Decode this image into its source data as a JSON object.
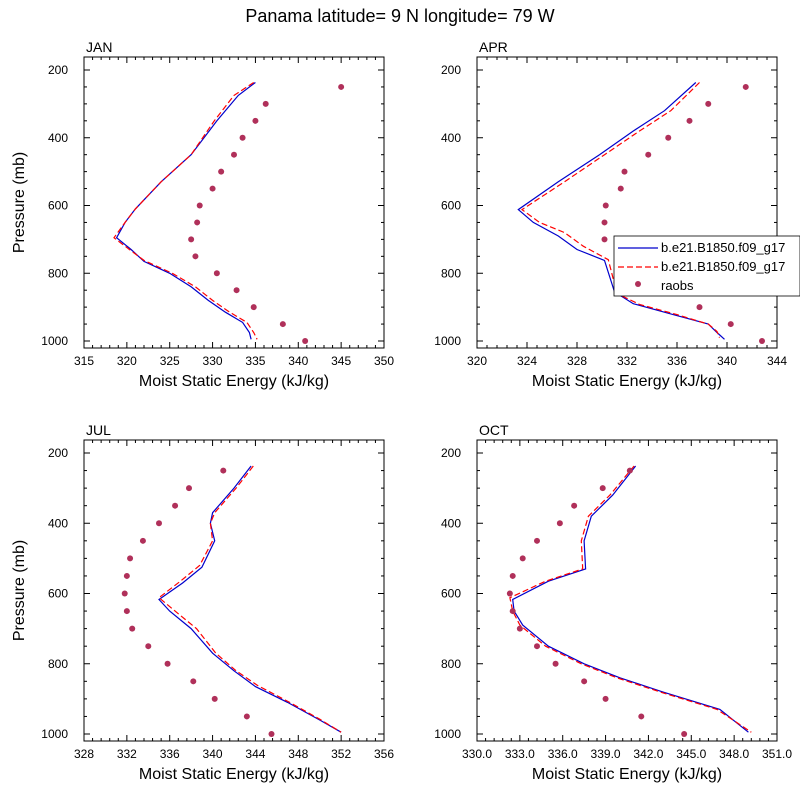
{
  "title": "Panama  latitude= 9 N longitude= 79 W",
  "colors": {
    "model1": "#0000cc",
    "model2": "#ff0000",
    "obs": "#b0305a"
  },
  "legend": {
    "entries": [
      "b.e21.B1850.f09_g17",
      "b.e21.B1850.f09_g17",
      "raobs"
    ]
  },
  "chart_data": [
    {
      "type": "line",
      "panel": "JAN",
      "xlabel": "Moist Static Energy (kJ/kg)",
      "ylabel": "Pressure (mb)",
      "xlim": [
        315,
        350
      ],
      "ylim": [
        200,
        1025
      ],
      "x_ticks": [
        315,
        320,
        325,
        330,
        335,
        340,
        345,
        350
      ],
      "x_tick_labels": [
        "315",
        "320",
        "325",
        "330",
        "335",
        "340",
        "345",
        "350"
      ],
      "y_ticks": [
        200,
        400,
        600,
        800,
        1000
      ],
      "series": [
        {
          "style": "solid",
          "color": "#0000cc",
          "points": [
            [
              335.0,
              237
            ],
            [
              333,
              275
            ],
            [
              330.5,
              350
            ],
            [
              327.5,
              450
            ],
            [
              324,
              530
            ],
            [
              321,
              610
            ],
            [
              319.8,
              650
            ],
            [
              318.8,
              695
            ],
            [
              320.5,
              730
            ],
            [
              322,
              765
            ],
            [
              325,
              800
            ],
            [
              327.5,
              840
            ],
            [
              329.5,
              880
            ],
            [
              331.5,
              915
            ],
            [
              333.5,
              945
            ],
            [
              334.3,
              975
            ],
            [
              334.5,
              995
            ]
          ]
        },
        {
          "style": "dashed",
          "color": "#ff0000",
          "points": [
            [
              334.8,
              237
            ],
            [
              332.5,
              275
            ],
            [
              330.2,
              350
            ],
            [
              327.5,
              450
            ],
            [
              324,
              530
            ],
            [
              321,
              610
            ],
            [
              319.8,
              650
            ],
            [
              318.5,
              695
            ],
            [
              320.3,
              730
            ],
            [
              322,
              762
            ],
            [
              325.3,
              800
            ],
            [
              328,
              840
            ],
            [
              330,
              880
            ],
            [
              332,
              915
            ],
            [
              334,
              945
            ],
            [
              334.8,
              975
            ],
            [
              335.2,
              995
            ]
          ]
        },
        {
          "style": "points",
          "color": "#b0305a",
          "points": [
            [
              345.0,
              250
            ],
            [
              336.2,
              300
            ],
            [
              335.0,
              350
            ],
            [
              333.5,
              400
            ],
            [
              332.5,
              450
            ],
            [
              331.0,
              500
            ],
            [
              330.0,
              550
            ],
            [
              328.5,
              600
            ],
            [
              328.2,
              650
            ],
            [
              327.5,
              700
            ],
            [
              328.0,
              750
            ],
            [
              330.5,
              800
            ],
            [
              332.8,
              850
            ],
            [
              334.8,
              900
            ],
            [
              338.2,
              950
            ],
            [
              340.8,
              1000
            ]
          ]
        }
      ]
    },
    {
      "type": "line",
      "panel": "APR",
      "xlabel": "Moist Static Energy (kJ/kg)",
      "ylabel": "",
      "xlim": [
        320,
        344
      ],
      "ylim": [
        200,
        1025
      ],
      "x_ticks": [
        320,
        324,
        328,
        332,
        336,
        340,
        344
      ],
      "x_tick_labels": [
        "320",
        "324",
        "328",
        "332",
        "336",
        "340",
        "344"
      ],
      "y_ticks": [
        200,
        400,
        600,
        800,
        1000
      ],
      "series": [
        {
          "style": "solid",
          "color": "#0000cc",
          "points": [
            [
              337.5,
              237
            ],
            [
              335,
              320
            ],
            [
              332.5,
              380
            ],
            [
              329.8,
              450
            ],
            [
              326.5,
              530
            ],
            [
              323.3,
              612
            ],
            [
              324.5,
              650
            ],
            [
              326.5,
              690
            ],
            [
              328,
              730
            ],
            [
              330.2,
              762
            ],
            [
              331,
              855
            ],
            [
              332.5,
              890
            ],
            [
              335.5,
              920
            ],
            [
              338.5,
              950
            ],
            [
              339.2,
              975
            ],
            [
              339.8,
              995
            ]
          ]
        },
        {
          "style": "dashed",
          "color": "#ff0000",
          "points": [
            [
              337.8,
              237
            ],
            [
              335.5,
              320
            ],
            [
              333,
              380
            ],
            [
              330.2,
              450
            ],
            [
              327,
              530
            ],
            [
              323.6,
              612
            ],
            [
              325,
              650
            ],
            [
              327,
              680
            ],
            [
              328.5,
              720
            ],
            [
              330.5,
              760
            ],
            [
              331.2,
              860
            ],
            [
              333,
              892
            ],
            [
              336,
              922
            ],
            [
              338.5,
              950
            ],
            [
              339.2,
              972
            ],
            [
              339.4,
              990
            ]
          ]
        },
        {
          "style": "points",
          "color": "#b0305a",
          "points": [
            [
              341.5,
              250
            ],
            [
              338.5,
              300
            ],
            [
              337.0,
              350
            ],
            [
              335.3,
              400
            ],
            [
              333.7,
              450
            ],
            [
              331.8,
              500
            ],
            [
              331.5,
              550
            ],
            [
              330.3,
              600
            ],
            [
              330.2,
              650
            ],
            [
              330.2,
              700
            ],
            [
              331.8,
              750
            ],
            [
              333.8,
              800
            ],
            [
              335.3,
              850
            ],
            [
              337.8,
              900
            ],
            [
              340.3,
              950
            ],
            [
              342.8,
              1000
            ]
          ]
        }
      ]
    },
    {
      "type": "line",
      "panel": "JUL",
      "xlabel": "Moist Static Energy (kJ/kg)",
      "ylabel": "Pressure (mb)",
      "xlim": [
        328,
        356
      ],
      "ylim": [
        200,
        1025
      ],
      "x_ticks": [
        328,
        332,
        336,
        340,
        344,
        348,
        352,
        356
      ],
      "x_tick_labels": [
        "328",
        "332",
        "336",
        "340",
        "344",
        "348",
        "352",
        "356"
      ],
      "y_ticks": [
        200,
        400,
        600,
        800,
        1000
      ],
      "series": [
        {
          "style": "solid",
          "color": "#0000cc",
          "points": [
            [
              343.6,
              237
            ],
            [
              342,
              300
            ],
            [
              340,
              370
            ],
            [
              339.8,
              400
            ],
            [
              340.2,
              450
            ],
            [
              339,
              525
            ],
            [
              337.2,
              570
            ],
            [
              335,
              617
            ],
            [
              336,
              650
            ],
            [
              338,
              700
            ],
            [
              340,
              770
            ],
            [
              342,
              820
            ],
            [
              344,
              865
            ],
            [
              347,
              910
            ],
            [
              350,
              960
            ],
            [
              352,
              995
            ]
          ]
        },
        {
          "style": "dashed",
          "color": "#ff0000",
          "points": [
            [
              343.8,
              237
            ],
            [
              342.2,
              300
            ],
            [
              340.2,
              370
            ],
            [
              339.8,
              400
            ],
            [
              340,
              450
            ],
            [
              338.8,
              520
            ],
            [
              337,
              565
            ],
            [
              335,
              612
            ],
            [
              336.5,
              650
            ],
            [
              338.5,
              700
            ],
            [
              340.3,
              770
            ],
            [
              342.2,
              820
            ],
            [
              344.2,
              862
            ],
            [
              347.2,
              910
            ],
            [
              350,
              958
            ],
            [
              352,
              995
            ]
          ]
        },
        {
          "style": "points",
          "color": "#b0305a",
          "points": [
            [
              341.0,
              250
            ],
            [
              337.8,
              300
            ],
            [
              336.5,
              350
            ],
            [
              335.0,
              400
            ],
            [
              333.5,
              450
            ],
            [
              332.3,
              500
            ],
            [
              332.0,
              550
            ],
            [
              331.8,
              600
            ],
            [
              332.0,
              650
            ],
            [
              332.5,
              700
            ],
            [
              334.0,
              750
            ],
            [
              335.8,
              800
            ],
            [
              338.2,
              850
            ],
            [
              340.2,
              900
            ],
            [
              343.2,
              950
            ],
            [
              345.5,
              1000
            ]
          ]
        }
      ]
    },
    {
      "type": "line",
      "panel": "OCT",
      "xlabel": "Moist Static Energy (kJ/kg)",
      "ylabel": "",
      "xlim": [
        330.0,
        351.0
      ],
      "ylim": [
        200,
        1025
      ],
      "x_ticks": [
        330,
        333,
        336,
        339,
        342,
        345,
        348,
        351
      ],
      "x_tick_labels": [
        "330.0",
        "333.0",
        "336.0",
        "339.0",
        "342.0",
        "345.0",
        "348.0",
        "351.0"
      ],
      "y_ticks": [
        200,
        400,
        600,
        800,
        1000
      ],
      "series": [
        {
          "style": "solid",
          "color": "#0000cc",
          "points": [
            [
              341.1,
              237
            ],
            [
              339.5,
              320
            ],
            [
              338,
              380
            ],
            [
              337.5,
              450
            ],
            [
              337.6,
              530
            ],
            [
              335,
              565
            ],
            [
              332.5,
              617
            ],
            [
              332.6,
              650
            ],
            [
              333.2,
              690
            ],
            [
              335,
              750
            ],
            [
              337.5,
              800
            ],
            [
              340,
              840
            ],
            [
              343,
              880
            ],
            [
              347,
              930
            ],
            [
              349,
              995
            ]
          ]
        },
        {
          "style": "dashed",
          "color": "#ff0000",
          "points": [
            [
              341.0,
              237
            ],
            [
              339.3,
              320
            ],
            [
              337.8,
              380
            ],
            [
              337.3,
              450
            ],
            [
              337.4,
              530
            ],
            [
              334.8,
              565
            ],
            [
              332.3,
              612
            ],
            [
              332.5,
              650
            ],
            [
              333,
              690
            ],
            [
              334.8,
              750
            ],
            [
              337.3,
              800
            ],
            [
              339.8,
              840
            ],
            [
              342.8,
              880
            ],
            [
              346.8,
              930
            ],
            [
              349.2,
              995
            ]
          ]
        },
        {
          "style": "points",
          "color": "#b0305a",
          "points": [
            [
              340.7,
              250
            ],
            [
              338.8,
              300
            ],
            [
              336.8,
              350
            ],
            [
              335.8,
              400
            ],
            [
              334.2,
              450
            ],
            [
              333.2,
              500
            ],
            [
              332.5,
              550
            ],
            [
              332.3,
              600
            ],
            [
              332.5,
              650
            ],
            [
              333.0,
              700
            ],
            [
              334.2,
              750
            ],
            [
              335.5,
              800
            ],
            [
              337.5,
              850
            ],
            [
              339.0,
              900
            ],
            [
              341.5,
              950
            ],
            [
              344.5,
              1000
            ]
          ]
        }
      ]
    }
  ]
}
